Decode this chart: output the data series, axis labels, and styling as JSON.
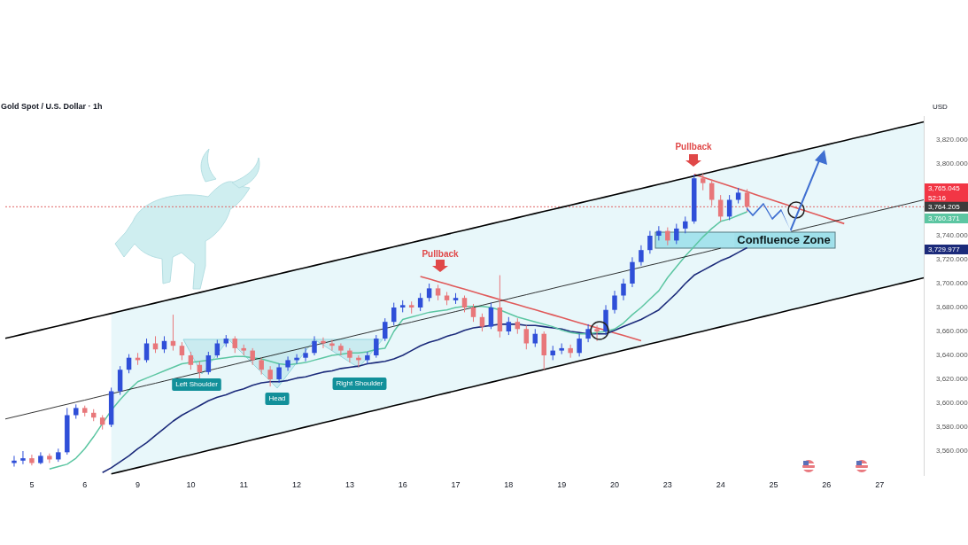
{
  "chart_data": {
    "type": "candlestick",
    "title": "Gold Spot / U.S. Dollar · 1h",
    "ylabel": "USD",
    "categories": [
      null,
      null,
      null,
      "5",
      null,
      null,
      null,
      null,
      null,
      "6",
      null,
      null,
      null,
      null,
      null,
      "9",
      null,
      null,
      null,
      null,
      null,
      "10",
      null,
      null,
      null,
      null,
      null,
      "11",
      null,
      null,
      null,
      null,
      null,
      "12",
      null,
      null,
      null,
      null,
      null,
      "13",
      null,
      null,
      null,
      null,
      null,
      "16",
      null,
      null,
      null,
      null,
      null,
      "17",
      null,
      null,
      null,
      null,
      null,
      "18",
      null,
      null,
      null,
      null,
      null,
      "19",
      null,
      null,
      null,
      null,
      null,
      "20",
      null,
      null,
      null,
      null,
      null,
      "23",
      null,
      null,
      null,
      null,
      null,
      "24",
      null,
      null,
      null,
      null,
      null,
      "25",
      null,
      null,
      null,
      null,
      null,
      "26",
      null,
      null,
      null,
      null,
      null,
      "27",
      null,
      null,
      null,
      null,
      null
    ],
    "ylim": [
      3540,
      3840
    ],
    "yticks": [
      {
        "value": 3560,
        "label": "3,560.000"
      },
      {
        "value": 3580,
        "label": "3,580.000"
      },
      {
        "value": 3600,
        "label": "3,600.000"
      },
      {
        "value": 3620,
        "label": "3,620.000"
      },
      {
        "value": 3640,
        "label": "3,640.000"
      },
      {
        "value": 3660,
        "label": "3,660.000"
      },
      {
        "value": 3680,
        "label": "3,680.000"
      },
      {
        "value": 3700,
        "label": "3,700.000"
      },
      {
        "value": 3720,
        "label": "3,720.000"
      },
      {
        "value": 3740,
        "label": "3,740.000"
      },
      {
        "value": 3800,
        "label": "3,800.000"
      },
      {
        "value": 3820,
        "label": "3,820.000"
      }
    ],
    "series": [
      {
        "type": "line",
        "color": "#000000",
        "values": [
          3654.2,
          3655.9,
          3657.7,
          3659.4,
          3661.2,
          3662.9,
          3664.6,
          3666.4,
          3668.1,
          3669.9,
          3671.6,
          3673.3,
          3675.1,
          3676.8,
          3678.6,
          3680.3,
          3682.0,
          3683.8,
          3685.5,
          3687.3,
          3689.0,
          3690.7,
          3692.5,
          3694.2,
          3696.0,
          3697.7,
          3699.4,
          3701.2,
          3702.9,
          3704.7,
          3706.4,
          3708.1,
          3709.9,
          3711.6,
          3713.4,
          3715.1,
          3716.9,
          3718.6,
          3720.3,
          3722.1,
          3723.8,
          3725.6,
          3727.3,
          3729.0,
          3730.8,
          3732.5,
          3734.3,
          3736.0,
          3737.7,
          3739.5,
          3741.2,
          3743.0,
          3744.7,
          3746.4,
          3748.2,
          3749.9,
          3751.7,
          3753.4,
          3755.1,
          3756.9,
          3758.6,
          3760.4,
          3762.1,
          3763.8,
          3765.6,
          3767.3,
          3769.1,
          3770.8,
          3772.5,
          3774.3,
          3776.0,
          3777.8,
          3779.5,
          3781.2,
          3783.0,
          3784.7,
          3786.5,
          3788.2,
          3789.9,
          3791.7,
          3793.4,
          3795.2,
          3796.9,
          3798.6,
          3800.4,
          3802.1,
          3803.9,
          3805.6,
          3807.3,
          3809.1,
          3810.8,
          3812.6,
          3814.3,
          3816.0,
          3817.8,
          3819.5,
          3821.3,
          3823.0,
          3824.7,
          3826.5,
          3828.2,
          3830.0,
          3831.7,
          3833.4,
          3835.2
        ]
      },
      {
        "type": "line",
        "color": "#000000",
        "lower": [
          null,
          null,
          null,
          null,
          null,
          null,
          null,
          null,
          null,
          null,
          null,
          null,
          3540.9,
          3542.7,
          3544.5,
          3546.2,
          3548.0,
          3549.8,
          3551.6,
          3553.4,
          3555.2,
          3556.9,
          3558.7,
          3560.5,
          3562.3,
          3564.1,
          3565.8,
          3567.6,
          3569.4,
          3571.2,
          3573.0,
          3574.7,
          3576.5,
          3578.3,
          3580.1,
          3581.9,
          3583.7,
          3585.4,
          3587.2,
          3589.0,
          3590.8,
          3592.6,
          3594.3,
          3596.1,
          3597.9,
          3599.7,
          3601.5,
          3603.2,
          3605.0,
          3606.8,
          3608.6,
          3610.4,
          3612.2,
          3613.9,
          3615.7,
          3617.5,
          3619.3,
          3621.1,
          3622.8,
          3624.6,
          3626.4,
          3628.2,
          3630.0,
          3631.7,
          3633.5,
          3635.3,
          3637.1,
          3638.9,
          3640.7,
          3642.4,
          3644.2,
          3646.0,
          3647.8,
          3649.6,
          3651.3,
          3653.1,
          3654.9,
          3656.7,
          3658.5,
          3660.2,
          3662.0,
          3663.8,
          3665.6,
          3667.4,
          3669.1,
          3670.9,
          3672.7,
          3674.5,
          3676.3,
          3678.1,
          3679.8,
          3681.6,
          3683.4,
          3685.2,
          3687.0,
          3688.7,
          3690.5,
          3692.3,
          3694.1,
          3695.9,
          3697.6,
          3699.4,
          3701.2,
          3703.0,
          3704.8
        ],
        "upper": [
          null,
          null,
          null,
          null,
          null,
          null,
          null,
          null,
          null,
          null,
          null,
          null,
          3675.1,
          3676.8,
          3678.6,
          3680.3,
          3682.0,
          3683.8,
          3685.5,
          3687.3,
          3689.0,
          3690.7,
          3692.5,
          3694.2,
          3696.0,
          3697.7,
          3699.4,
          3701.2,
          3702.9,
          3704.7,
          3706.4,
          3708.1,
          3709.9,
          3711.6,
          3713.4,
          3715.1,
          3716.9,
          3718.6,
          3720.3,
          3722.1,
          3723.8,
          3725.6,
          3727.3,
          3729.0,
          3730.8,
          3732.5,
          3734.3,
          3736.0,
          3737.7,
          3739.5,
          3741.2,
          3743.0,
          3744.7,
          3746.4,
          3748.2,
          3749.9,
          3751.7,
          3753.4,
          3755.1,
          3756.9,
          3758.6,
          3760.4,
          3762.1,
          3763.8,
          3765.6,
          3767.3,
          3769.1,
          3770.8,
          3772.5,
          3774.3,
          3776.0,
          3777.8,
          3779.5,
          3781.2,
          3783.0,
          3784.7,
          3786.5,
          3788.2,
          3789.9,
          3791.7,
          3793.4,
          3795.2,
          3796.9,
          3798.6,
          3800.4,
          3802.1,
          3803.9,
          3805.6,
          3807.3,
          3809.1,
          3810.8,
          3812.6,
          3814.3,
          3816.0,
          3817.8,
          3819.5,
          3821.3,
          3823.0,
          3824.7,
          3826.5,
          3828.2,
          3830.0,
          3831.7,
          3833.4,
          3835.2
        ],
        "values": [
          3586.8,
          3588.6,
          3590.3,
          3592.1,
          3593.8,
          3595.6,
          3597.4,
          3599.1,
          3600.9,
          3602.6,
          3604.4,
          3606.2,
          3607.9,
          3609.7,
          3611.5,
          3613.2,
          3615.0,
          3616.7,
          3618.5,
          3620.3,
          3622.0,
          3623.8,
          3625.5,
          3627.3,
          3629.1,
          3630.8,
          3632.6,
          3634.4,
          3636.1,
          3637.9,
          3639.6,
          3641.4,
          3643.2,
          3644.9,
          3646.7,
          3648.4,
          3650.2,
          3652.0,
          3653.7,
          3655.5,
          3657.3,
          3659.0,
          3660.8,
          3662.5,
          3664.3,
          3666.1,
          3667.8,
          3669.6,
          3671.3,
          3673.1,
          3674.9,
          3676.6,
          3678.4,
          3680.1,
          3681.9,
          3683.7,
          3685.4,
          3687.2,
          3689.0,
          3690.7,
          3692.5,
          3694.2,
          3696.0,
          3697.8,
          3699.5,
          3701.3,
          3703.0,
          3704.8,
          3706.6,
          3708.3,
          3710.1,
          3711.9,
          3713.6,
          3715.4,
          3717.1,
          3718.9,
          3720.7,
          3722.4,
          3724.2,
          3725.9,
          3727.7,
          3729.5,
          null,
          null,
          null,
          null,
          null,
          null,
          null,
          3743.5,
          3745.3,
          3747.1,
          3748.8,
          3750.6,
          3752.4,
          3754.1,
          3755.9,
          3757.6,
          3759.4,
          3761.2,
          3762.9,
          3764.7,
          3766.4,
          3768.2,
          3770.0
        ]
      },
      {
        "type": "line",
        "color": "#000000",
        "values": [
          null,
          null,
          null,
          null,
          null,
          null,
          null,
          null,
          null,
          null,
          null,
          null,
          3540.9,
          3542.7,
          3544.5,
          3546.2,
          3548.0,
          3549.8,
          3551.6,
          3553.4,
          3555.2,
          3556.9,
          3558.7,
          3560.5,
          3562.3,
          3564.1,
          3565.8,
          3567.6,
          3569.4,
          3571.2,
          3573.0,
          3574.7,
          3576.5,
          3578.3,
          3580.1,
          3581.9,
          3583.7,
          3585.4,
          3587.2,
          3589.0,
          3590.8,
          3592.6,
          3594.3,
          3596.1,
          3597.9,
          3599.7,
          3601.5,
          3603.2,
          3605.0,
          3606.8,
          3608.6,
          3610.4,
          3612.2,
          3613.9,
          3615.7,
          3617.5,
          3619.3,
          3621.1,
          3622.8,
          3624.6,
          3626.4,
          3628.2,
          3630.0,
          3631.7,
          3633.5,
          3635.3,
          3637.1,
          3638.9,
          3640.7,
          3642.4,
          3644.2,
          3646.0,
          3647.8,
          3649.6,
          3651.3,
          3653.1,
          3654.9,
          3656.7,
          3658.5,
          3660.2,
          3662.0,
          3663.8,
          3665.6,
          3667.4,
          3669.1,
          3670.9,
          3672.7,
          3674.5,
          3676.3,
          3678.1,
          3679.8,
          3681.6,
          3683.4,
          3685.2,
          3687.0,
          3688.7,
          3690.5,
          3692.3,
          3694.1,
          3695.9,
          3697.6,
          3699.4,
          3701.2,
          3703.0,
          3704.8
        ]
      },
      {
        "type": "line",
        "color": "#5cc6a2",
        "values": [
          null,
          null,
          null,
          null,
          null,
          3545,
          3547,
          3549,
          3554,
          3562,
          3572,
          3583,
          3594,
          3603,
          3611,
          3618,
          3621,
          3624,
          3627,
          3630,
          3633,
          3634,
          3635,
          3636,
          3637,
          3638,
          3639,
          3639,
          3638,
          3637,
          3635,
          3633,
          3632,
          3633,
          3634,
          3636,
          3638,
          3640,
          3641,
          3642,
          3642,
          3643,
          3645,
          3646,
          3660,
          3670,
          3672,
          3674,
          3676,
          3677,
          3678,
          3680,
          3681,
          3681,
          3681,
          3680,
          3678,
          3675,
          3672,
          3670,
          3668,
          3666,
          3664,
          3661,
          3659,
          3658,
          3658,
          3659,
          3660,
          3662,
          3667,
          3674,
          3680,
          3687,
          3694,
          3705,
          3714,
          3723,
          3731,
          3739,
          3746,
          3752,
          3754,
          3757,
          3760,
          null,
          null,
          null,
          null,
          null,
          null,
          null,
          null,
          null,
          null,
          null,
          null,
          null,
          null,
          null,
          null,
          null,
          null,
          null,
          null
        ]
      },
      {
        "type": "line",
        "color": "#1b2a7a",
        "values": [
          null,
          null,
          null,
          null,
          null,
          null,
          null,
          null,
          null,
          null,
          null,
          3542,
          3546,
          3551,
          3556,
          3562,
          3567,
          3573,
          3579,
          3585,
          3590,
          3594,
          3598,
          3602,
          3605,
          3607,
          3610,
          3612,
          3615,
          3617,
          3618,
          3618,
          3619,
          3621,
          3622,
          3624,
          3626,
          3627,
          3629,
          3630,
          3631,
          3633,
          3634,
          3635,
          3637,
          3640,
          3644,
          3648,
          3651,
          3653,
          3656,
          3658,
          3661,
          3663,
          3664,
          3665,
          3666,
          3666,
          3666,
          3665,
          3665,
          3664,
          3663,
          3662,
          3660,
          3659,
          3658,
          3658,
          3658,
          3661,
          3664,
          3667,
          3670,
          3674,
          3678,
          3685,
          3692,
          3700,
          3707,
          3711,
          3715,
          3719,
          3722,
          3726,
          3730,
          null,
          null,
          null,
          null,
          null,
          null,
          null,
          null,
          null,
          null,
          null,
          null,
          null,
          null,
          null,
          null,
          null,
          null,
          null,
          null
        ]
      },
      {
        "type": "line",
        "color": "#e05a5a",
        "values": [
          null,
          null,
          null,
          null,
          null,
          null,
          null,
          null,
          null,
          null,
          null,
          null,
          null,
          null,
          null,
          null,
          null,
          null,
          null,
          null,
          null,
          null,
          null,
          null,
          null,
          null,
          null,
          null,
          null,
          null,
          null,
          null,
          null,
          null,
          null,
          null,
          null,
          null,
          null,
          null,
          null,
          null,
          null,
          null,
          null,
          null,
          null,
          3706.0,
          3703.9,
          3701.7,
          3699.6,
          3697.4,
          3695.3,
          3693.1,
          3691.0,
          3688.8,
          3686.7,
          3684.5,
          3682.4,
          3680.2,
          3678.1,
          3675.9,
          3673.8,
          3671.6,
          3669.5,
          3667.3,
          3665.2,
          3663.0,
          3660.9,
          3658.7,
          3656.6,
          3654.4,
          3652.3,
          null,
          null,
          null,
          null,
          null,
          null,
          null,
          null,
          null,
          null,
          null,
          null,
          null,
          null,
          null,
          null,
          null,
          null,
          null,
          null,
          null,
          null,
          null,
          null,
          null,
          null,
          null,
          null,
          null,
          null,
          null,
          null
        ]
      },
      {
        "type": "line",
        "color": "#e05a5a",
        "values": [
          null,
          null,
          null,
          null,
          null,
          null,
          null,
          null,
          null,
          null,
          null,
          null,
          null,
          null,
          null,
          null,
          null,
          null,
          null,
          null,
          null,
          null,
          null,
          null,
          null,
          null,
          null,
          null,
          null,
          null,
          null,
          null,
          null,
          null,
          null,
          null,
          null,
          null,
          null,
          null,
          null,
          null,
          null,
          null,
          null,
          null,
          null,
          null,
          null,
          null,
          null,
          null,
          null,
          null,
          null,
          null,
          null,
          null,
          null,
          null,
          null,
          null,
          null,
          null,
          null,
          null,
          null,
          null,
          null,
          null,
          null,
          null,
          null,
          null,
          null,
          null,
          null,
          null,
          3791.3,
          3788.9,
          3786.5,
          3784.0,
          3781.6,
          3779.2,
          3776.8,
          3774.3,
          3771.9,
          3769.5,
          3767.1,
          3764.6,
          3762.2,
          3759.8,
          3757.4,
          3755.0,
          3752.5,
          3750.1,
          null,
          null,
          null,
          null,
          null,
          null,
          null,
          null,
          null
        ]
      },
      {
        "ohlc": [
          null,
          [
            3550,
            3556,
            3547,
            3552
          ],
          [
            3552,
            3560,
            3549,
            3554
          ],
          [
            3554,
            3557,
            3548,
            3550
          ],
          [
            3550,
            3559,
            3549,
            3556
          ],
          [
            3556,
            3558,
            3550,
            3553
          ],
          [
            3553,
            3562,
            3551,
            3559
          ],
          [
            3559,
            3596,
            3557,
            3590
          ],
          [
            3590,
            3599,
            3587,
            3596
          ],
          [
            3596,
            3598,
            3589,
            3592
          ],
          [
            3592,
            3595,
            3585,
            3588
          ],
          [
            3588,
            3590,
            3578,
            3582
          ],
          [
            3582,
            3613,
            3580,
            3610
          ],
          [
            3610,
            3631,
            3607,
            3628
          ],
          [
            3628,
            3641,
            3625,
            3638
          ],
          [
            3638,
            3642,
            3632,
            3636
          ],
          [
            3636,
            3654,
            3634,
            3650
          ],
          [
            3650,
            3656,
            3642,
            3645
          ],
          [
            3645,
            3656,
            3642,
            3652
          ],
          [
            3652,
            3674,
            3644,
            3648
          ],
          [
            3648,
            3651,
            3636,
            3640
          ],
          [
            3640,
            3643,
            3628,
            3632
          ],
          [
            3632,
            3635,
            3620,
            3626
          ],
          [
            3626,
            3643,
            3624,
            3640
          ],
          [
            3640,
            3653,
            3638,
            3650
          ],
          [
            3650,
            3657,
            3647,
            3654
          ],
          [
            3654,
            3656,
            3642,
            3646
          ],
          [
            3646,
            3649,
            3640,
            3644
          ],
          [
            3644,
            3646,
            3632,
            3636
          ],
          [
            3636,
            3638,
            3624,
            3628
          ],
          [
            3628,
            3631,
            3614,
            3620
          ],
          [
            3620,
            3633,
            3617,
            3630
          ],
          [
            3630,
            3639,
            3627,
            3636
          ],
          [
            3636,
            3641,
            3633,
            3638
          ],
          [
            3638,
            3646,
            3635,
            3642
          ],
          [
            3642,
            3656,
            3640,
            3652
          ],
          [
            3652,
            3655,
            3646,
            3650
          ],
          [
            3650,
            3653,
            3644,
            3648
          ],
          [
            3648,
            3650,
            3640,
            3644
          ],
          [
            3644,
            3646,
            3634,
            3638
          ],
          [
            3638,
            3640,
            3630,
            3636
          ],
          [
            3636,
            3643,
            3633,
            3640
          ],
          [
            3640,
            3657,
            3638,
            3654
          ],
          [
            3654,
            3671,
            3652,
            3668
          ],
          [
            3668,
            3684,
            3665,
            3680
          ],
          [
            3680,
            3686,
            3676,
            3682
          ],
          [
            3682,
            3685,
            3675,
            3680
          ],
          [
            3680,
            3692,
            3677,
            3688
          ],
          [
            3688,
            3700,
            3685,
            3696
          ],
          [
            3696,
            3699,
            3686,
            3690
          ],
          [
            3690,
            3693,
            3682,
            3686
          ],
          [
            3686,
            3692,
            3683,
            3688
          ],
          [
            3688,
            3690,
            3676,
            3680
          ],
          [
            3680,
            3683,
            3668,
            3672
          ],
          [
            3672,
            3675,
            3660,
            3664
          ],
          [
            3664,
            3684,
            3662,
            3680
          ],
          [
            3680,
            3707,
            3655,
            3660
          ],
          [
            3660,
            3672,
            3657,
            3668
          ],
          [
            3668,
            3671,
            3658,
            3662
          ],
          [
            3662,
            3665,
            3645,
            3650
          ],
          [
            3650,
            3662,
            3647,
            3658
          ],
          [
            3658,
            3660,
            3628,
            3640
          ],
          [
            3640,
            3648,
            3636,
            3644
          ],
          [
            3644,
            3650,
            3641,
            3646
          ],
          [
            3646,
            3649,
            3638,
            3642
          ],
          [
            3642,
            3658,
            3639,
            3654
          ],
          [
            3654,
            3666,
            3651,
            3662
          ],
          [
            3662,
            3665,
            3652,
            3660
          ],
          [
            3660,
            3682,
            3657,
            3678
          ],
          [
            3678,
            3694,
            3675,
            3690
          ],
          [
            3690,
            3704,
            3686,
            3700
          ],
          [
            3700,
            3722,
            3697,
            3718
          ],
          [
            3718,
            3732,
            3715,
            3728
          ],
          [
            3728,
            3744,
            3725,
            3740
          ],
          [
            3740,
            3748,
            3736,
            3744
          ],
          [
            3744,
            3747,
            3732,
            3736
          ],
          [
            3736,
            3750,
            3733,
            3746
          ],
          [
            3746,
            3756,
            3742,
            3752
          ],
          [
            3752,
            3791,
            3750,
            3788
          ],
          [
            3788,
            3792,
            3778,
            3784
          ],
          [
            3784,
            3787,
            3765,
            3770
          ],
          [
            3770,
            3774,
            3752,
            3756
          ],
          [
            3756,
            3774,
            3753,
            3770
          ],
          [
            3770,
            3780,
            3767,
            3776
          ],
          [
            3776,
            3779,
            3760,
            3764.205
          ],
          null,
          null,
          null,
          null,
          null,
          null,
          null,
          null,
          null,
          null,
          null,
          null,
          null,
          null,
          null,
          null,
          null,
          null,
          null,
          null
        ]
      }
    ],
    "ref_lines": [
      {
        "axis": "y",
        "value": 3764.205,
        "label": "3,764.205",
        "color": "#e06666",
        "line_style": "dashed"
      }
    ],
    "annotations": [
      "Pullback",
      "Pullback",
      "Left Shoulder",
      "Head",
      "Right Shoulder",
      "Confluence Zone",
      "3,765.045\n52:16",
      "3,760.371",
      "3,729.977"
    ]
  }
}
